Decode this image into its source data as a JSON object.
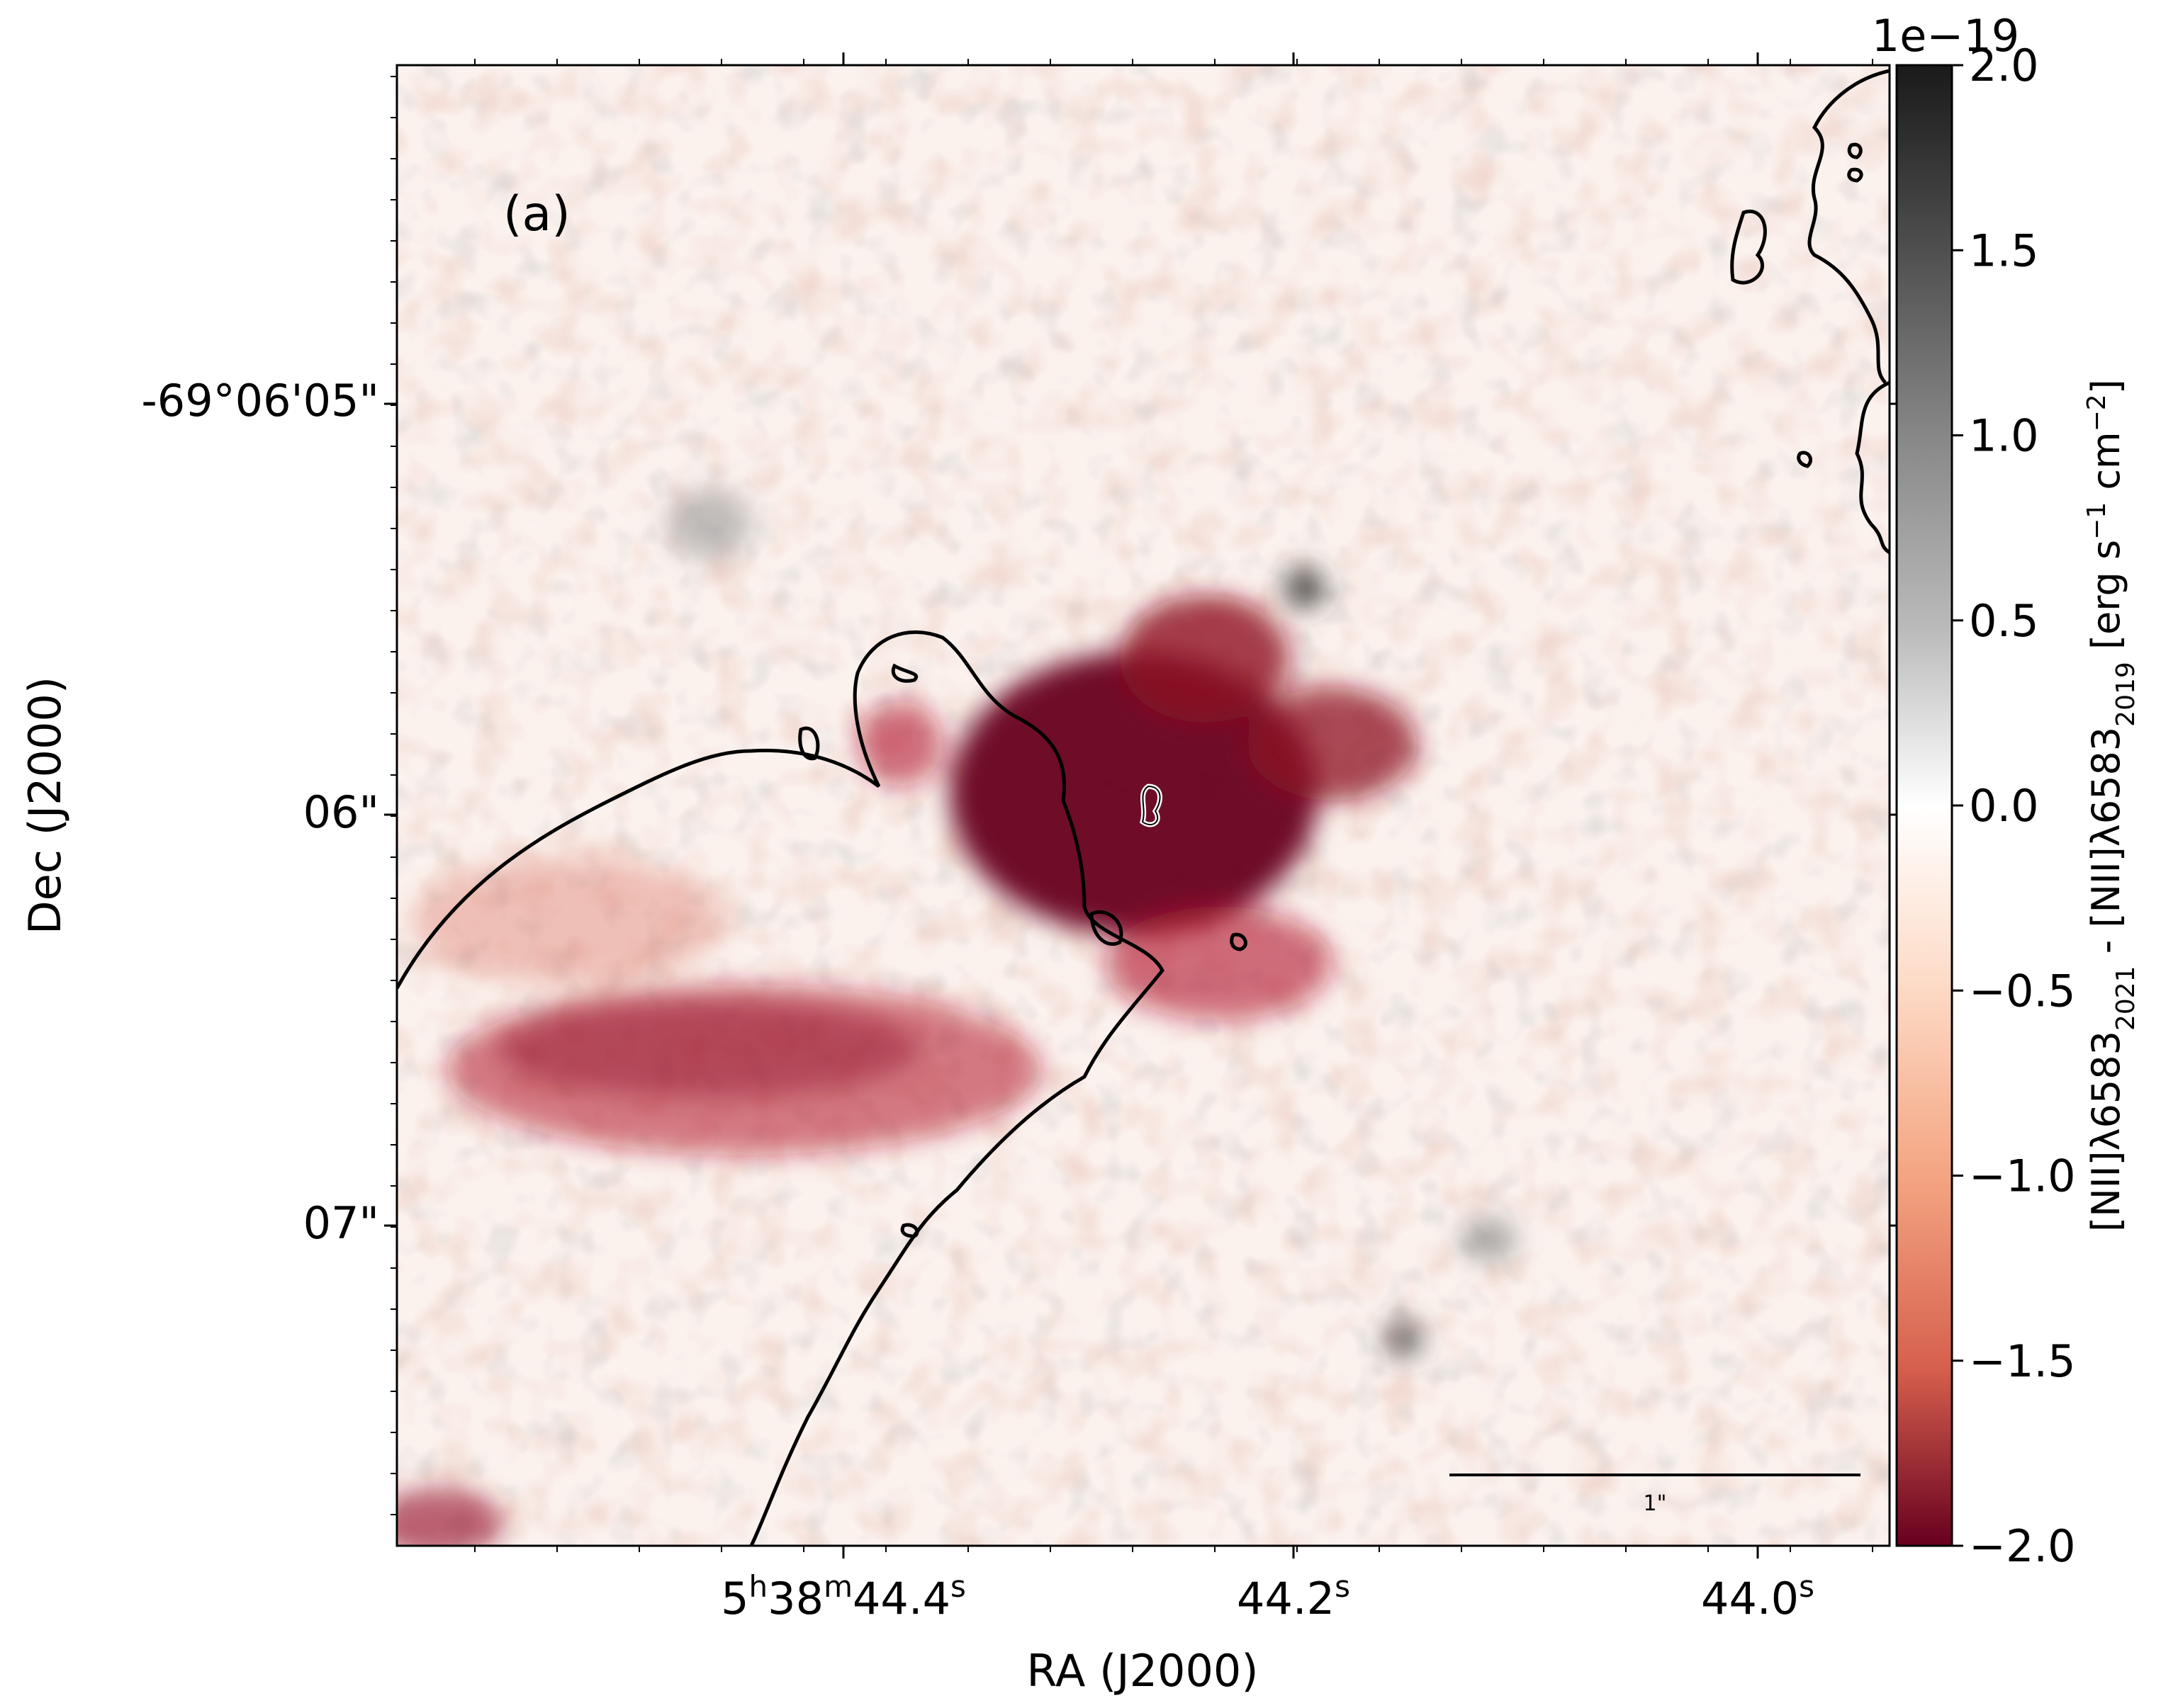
{
  "chart_data": {
    "type": "heatmap",
    "title": "",
    "panel_label": "(a)",
    "xlabel": "RA (J2000)",
    "ylabel": "Dec (J2000)",
    "x_ticks": [
      {
        "value": "5h38m44.4s",
        "parts": [
          "5",
          "h",
          "38",
          "m",
          "44.4",
          "s"
        ]
      },
      {
        "value": "44.2s",
        "parts": [
          "44.2",
          "s"
        ]
      },
      {
        "value": "44.0s",
        "parts": [
          "44.0",
          "s"
        ]
      }
    ],
    "y_ticks": [
      {
        "value": "-69°06'05\"",
        "label": "-69°06'05\""
      },
      {
        "value": "06\"",
        "label": "06\""
      },
      {
        "value": "07\"",
        "label": "07\""
      }
    ],
    "colorbar": {
      "label_parts": [
        "[NII]λ6583",
        "2021",
        " - [NII]λ6583",
        "2019",
        " [erg s",
        "−1",
        " cm",
        "−2",
        "]"
      ],
      "offset_text": "1e−19",
      "range": [
        -2.0,
        2.0
      ],
      "ticks": [
        2.0,
        1.5,
        1.0,
        0.5,
        0.0,
        -0.5,
        -1.0,
        -1.5,
        -2.0
      ],
      "tick_labels": [
        "2.0",
        "1.5",
        "1.0",
        "0.5",
        "0.0",
        "−0.5",
        "−1.0",
        "−1.5",
        "−2.0"
      ],
      "colormap": "RdGy_r",
      "color_max": "#1a1a1a",
      "color_zero": "#ffffff",
      "color_min": "#67001f"
    },
    "scale_bar": {
      "label": "1\"",
      "length_arcsec": 1
    },
    "grid": false,
    "contour_color": "#000000",
    "center_contour_color": "#ffffff"
  }
}
